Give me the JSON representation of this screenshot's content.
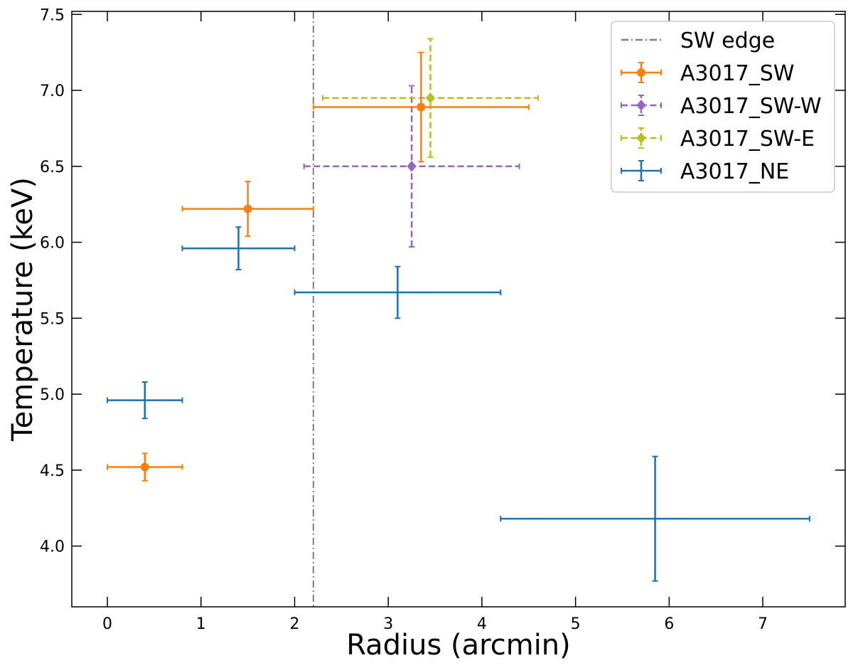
{
  "chart_data": {
    "type": "scatter",
    "title": "",
    "xlabel": "Radius (arcmin)",
    "ylabel": "Temperature (keV)",
    "xlim": [
      -0.38,
      7.88
    ],
    "ylim": [
      3.6,
      7.52
    ],
    "xticks": [
      0,
      1,
      2,
      3,
      4,
      5,
      6,
      7
    ],
    "yticks": [
      4.0,
      4.5,
      5.0,
      5.5,
      6.0,
      6.5,
      7.0,
      7.5
    ],
    "xtick_labels": [
      "0",
      "1",
      "2",
      "3",
      "4",
      "5",
      "6",
      "7"
    ],
    "ytick_labels": [
      "4.0",
      "4.5",
      "5.0",
      "5.5",
      "6.0",
      "6.5",
      "7.0",
      "7.5"
    ],
    "grid": false,
    "legend_position": "top-right",
    "vline": {
      "name": "SW edge",
      "x": 2.2,
      "color": "#7f7f7f",
      "style": "dashdot"
    },
    "series": [
      {
        "name": "A3017_SW",
        "color": "#ff7f0e",
        "marker": "circle",
        "linestyle": "solid",
        "points": [
          {
            "x": 0.4,
            "xlo": 0.0,
            "xhi": 0.8,
            "y": 4.52,
            "ylo": 4.43,
            "yhi": 4.61
          },
          {
            "x": 1.5,
            "xlo": 0.8,
            "xhi": 2.2,
            "y": 6.22,
            "ylo": 6.04,
            "yhi": 6.4
          },
          {
            "x": 3.35,
            "xlo": 2.2,
            "xhi": 4.5,
            "y": 6.89,
            "ylo": 6.53,
            "yhi": 7.25
          }
        ]
      },
      {
        "name": "A3017_SW-W",
        "color": "#9467bd",
        "marker": "diamond",
        "linestyle": "dashed",
        "points": [
          {
            "x": 3.25,
            "xlo": 2.1,
            "xhi": 4.4,
            "y": 6.5,
            "ylo": 5.97,
            "yhi": 7.03
          }
        ]
      },
      {
        "name": "A3017_SW-E",
        "color": "#bcbd22",
        "marker": "diamond",
        "linestyle": "dashed",
        "points": [
          {
            "x": 3.45,
            "xlo": 2.3,
            "xhi": 4.6,
            "y": 6.95,
            "ylo": 6.56,
            "yhi": 7.34
          }
        ]
      },
      {
        "name": "A3017_NE",
        "color": "#1f6fb2",
        "marker": "none",
        "linestyle": "solid",
        "points": [
          {
            "x": 0.4,
            "xlo": 0.0,
            "xhi": 0.8,
            "y": 4.96,
            "ylo": 4.84,
            "yhi": 5.08
          },
          {
            "x": 1.4,
            "xlo": 0.8,
            "xhi": 2.0,
            "y": 5.96,
            "ylo": 5.82,
            "yhi": 6.1
          },
          {
            "x": 3.1,
            "xlo": 2.0,
            "xhi": 4.2,
            "y": 5.67,
            "ylo": 5.5,
            "yhi": 5.84
          },
          {
            "x": 5.85,
            "xlo": 4.2,
            "xhi": 7.5,
            "y": 4.18,
            "ylo": 3.77,
            "yhi": 4.59
          }
        ]
      }
    ]
  }
}
